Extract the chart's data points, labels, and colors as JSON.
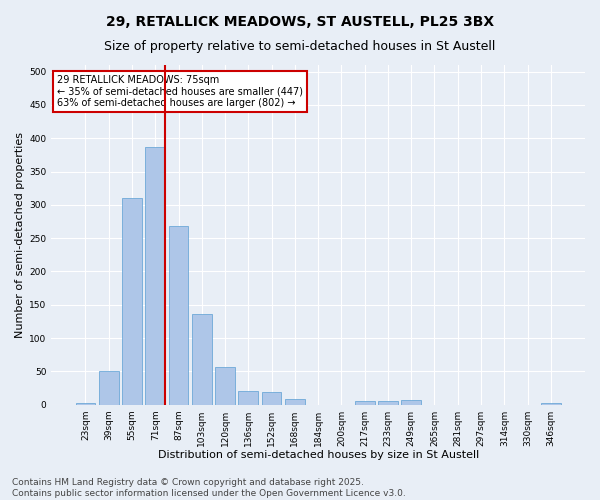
{
  "title_line1": "29, RETALLICK MEADOWS, ST AUSTELL, PL25 3BX",
  "title_line2": "Size of property relative to semi-detached houses in St Austell",
  "xlabel": "Distribution of semi-detached houses by size in St Austell",
  "ylabel": "Number of semi-detached properties",
  "categories": [
    "23sqm",
    "39sqm",
    "55sqm",
    "71sqm",
    "87sqm",
    "103sqm",
    "120sqm",
    "136sqm",
    "152sqm",
    "168sqm",
    "184sqm",
    "200sqm",
    "217sqm",
    "233sqm",
    "249sqm",
    "265sqm",
    "281sqm",
    "297sqm",
    "314sqm",
    "330sqm",
    "346sqm"
  ],
  "values": [
    3,
    50,
    310,
    387,
    268,
    136,
    57,
    20,
    19,
    8,
    0,
    0,
    6,
    6,
    7,
    0,
    0,
    0,
    0,
    0,
    2
  ],
  "bar_color": "#aec6e8",
  "bar_edge_color": "#5a9fd4",
  "vline_index": 3,
  "vline_color": "#cc0000",
  "annotation_text": "29 RETALLICK MEADOWS: 75sqm\n← 35% of semi-detached houses are smaller (447)\n63% of semi-detached houses are larger (802) →",
  "annotation_box_color": "#ffffff",
  "annotation_box_edge": "#cc0000",
  "ylim": [
    0,
    510
  ],
  "yticks": [
    0,
    50,
    100,
    150,
    200,
    250,
    300,
    350,
    400,
    450,
    500
  ],
  "footer_line1": "Contains HM Land Registry data © Crown copyright and database right 2025.",
  "footer_line2": "Contains public sector information licensed under the Open Government Licence v3.0.",
  "bg_color": "#e8eef6",
  "title_fontsize": 10,
  "subtitle_fontsize": 9,
  "tick_fontsize": 6.5,
  "label_fontsize": 8,
  "footer_fontsize": 6.5
}
